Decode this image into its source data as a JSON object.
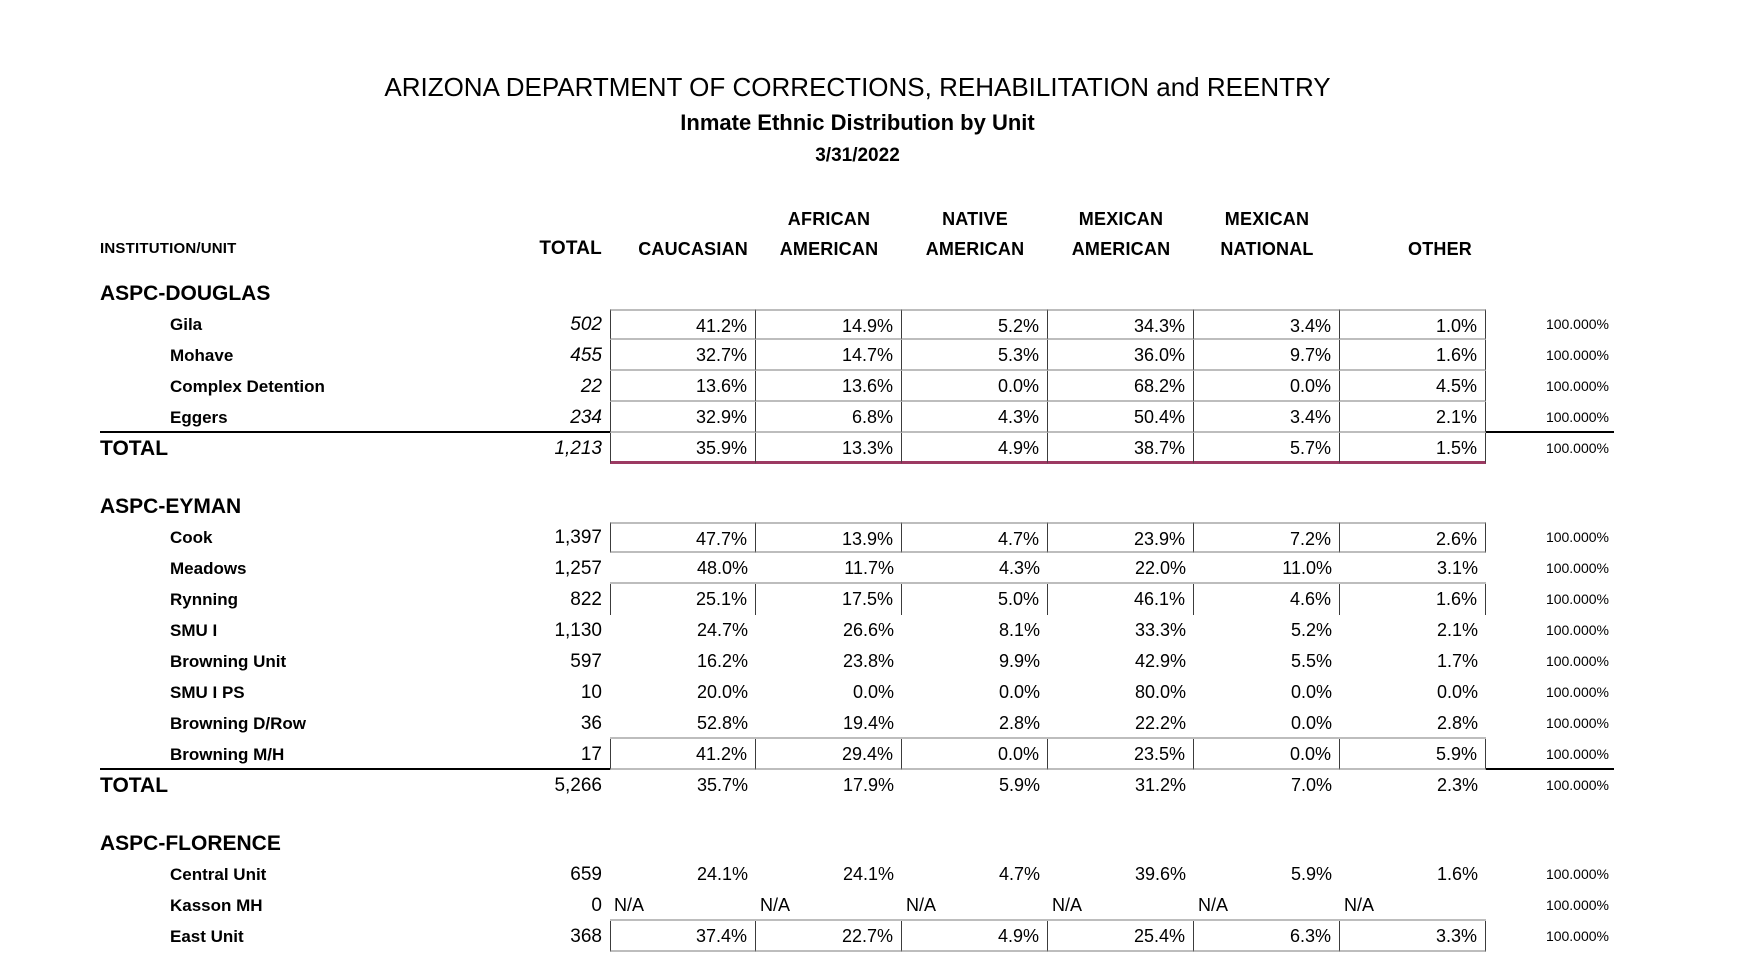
{
  "page": {
    "title": "ARIZONA DEPARTMENT OF CORRECTIONS, REHABILITATION and REENTRY",
    "subtitle": "Inmate Ethnic Distribution by Unit",
    "date": "3/31/2022"
  },
  "colors": {
    "maroon_total_line": "#9c3a62",
    "gray_cell_line": "#bdbdbd",
    "dark_cell_line": "#3c3c3c",
    "black_rule": "#000000"
  },
  "table": {
    "columns": {
      "unit": "INSTITUTION/UNIT",
      "total": "TOTAL",
      "group_top": [
        "",
        "AFRICAN",
        "NATIVE",
        "MEXICAN",
        "MEXICAN",
        ""
      ],
      "group_bottom": [
        "CAUCASIAN",
        "AMERICAN",
        "AMERICAN",
        "AMERICAN",
        "NATIONAL",
        "OTHER"
      ],
      "hundred_header": ""
    },
    "total_row_label": "TOTAL",
    "sections": [
      {
        "name": "ASPC-DOUGLAS",
        "rows": [
          {
            "unit": "Gila",
            "total": "502",
            "italic": true,
            "pcts": [
              "41.2%",
              "14.9%",
              "5.2%",
              "34.3%",
              "3.4%",
              "1.0%"
            ],
            "hund": "100.000%",
            "flags": [
              "gt",
              "v",
              "gb"
            ]
          },
          {
            "unit": "Mohave",
            "total": "455",
            "italic": true,
            "pcts": [
              "32.7%",
              "14.7%",
              "5.3%",
              "36.0%",
              "9.7%",
              "1.6%"
            ],
            "hund": "100.000%",
            "flags": [
              "v",
              "gb"
            ]
          },
          {
            "unit": "Complex Detention",
            "total": "22",
            "italic": true,
            "pcts": [
              "13.6%",
              "13.6%",
              "0.0%",
              "68.2%",
              "0.0%",
              "4.5%"
            ],
            "hund": "100.000%",
            "flags": [
              "v",
              "gb"
            ]
          },
          {
            "unit": "Eggers",
            "total": "234",
            "italic": true,
            "pcts": [
              "32.9%",
              "6.8%",
              "4.3%",
              "50.4%",
              "3.4%",
              "2.1%"
            ],
            "hund": "100.000%",
            "flags": [
              "v",
              "gb",
              "blb",
              "b100b"
            ]
          }
        ],
        "total_row": {
          "total": "1,213",
          "italic": true,
          "pcts": [
            "35.9%",
            "13.3%",
            "4.9%",
            "38.7%",
            "5.7%",
            "1.5%"
          ],
          "hund": "100.000%",
          "flags": [
            "v",
            "mb"
          ]
        }
      },
      {
        "name": "ASPC-EYMAN",
        "rows": [
          {
            "unit": "Cook",
            "total": "1,397",
            "italic": false,
            "pcts": [
              "47.7%",
              "13.9%",
              "4.7%",
              "23.9%",
              "7.2%",
              "2.6%"
            ],
            "hund": "100.000%",
            "flags": [
              "gt",
              "v",
              "gb"
            ]
          },
          {
            "unit": "Meadows",
            "total": "1,257",
            "italic": false,
            "pcts": [
              "48.0%",
              "11.7%",
              "4.3%",
              "22.0%",
              "11.0%",
              "3.1%"
            ],
            "hund": "100.000%",
            "flags": [
              "gb"
            ]
          },
          {
            "unit": "Rynning",
            "total": "822",
            "italic": false,
            "pcts": [
              "25.1%",
              "17.5%",
              "5.0%",
              "46.1%",
              "4.6%",
              "1.6%"
            ],
            "hund": "100.000%",
            "flags": [
              "v"
            ]
          },
          {
            "unit": "SMU I",
            "total": "1,130",
            "italic": false,
            "pcts": [
              "24.7%",
              "26.6%",
              "8.1%",
              "33.3%",
              "5.2%",
              "2.1%"
            ],
            "hund": "100.000%",
            "flags": []
          },
          {
            "unit": "Browning Unit",
            "total": "597",
            "italic": false,
            "pcts": [
              "16.2%",
              "23.8%",
              "9.9%",
              "42.9%",
              "5.5%",
              "1.7%"
            ],
            "hund": "100.000%",
            "flags": []
          },
          {
            "unit": "SMU I PS",
            "total": "10",
            "italic": false,
            "pcts": [
              "20.0%",
              "0.0%",
              "0.0%",
              "80.0%",
              "0.0%",
              "0.0%"
            ],
            "hund": "100.000%",
            "flags": []
          },
          {
            "unit": "Browning D/Row",
            "total": "36",
            "italic": false,
            "pcts": [
              "52.8%",
              "19.4%",
              "2.8%",
              "22.2%",
              "0.0%",
              "2.8%"
            ],
            "hund": "100.000%",
            "flags": [
              "gb"
            ]
          },
          {
            "unit": "Browning M/H",
            "total": "17",
            "italic": false,
            "pcts": [
              "41.2%",
              "29.4%",
              "0.0%",
              "23.5%",
              "0.0%",
              "5.9%"
            ],
            "hund": "100.000%",
            "flags": [
              "v",
              "gb",
              "blb",
              "b100b"
            ]
          }
        ],
        "total_row": {
          "total": "5,266",
          "italic": false,
          "pcts": [
            "35.7%",
            "17.9%",
            "5.9%",
            "31.2%",
            "7.0%",
            "2.3%"
          ],
          "hund": "100.000%",
          "flags": []
        }
      },
      {
        "name": "ASPC-FLORENCE",
        "rows": [
          {
            "unit": "Central Unit",
            "total": "659",
            "italic": false,
            "pcts": [
              "24.1%",
              "24.1%",
              "4.7%",
              "39.6%",
              "5.9%",
              "1.6%"
            ],
            "hund": "100.000%",
            "flags": []
          },
          {
            "unit": "Kasson MH",
            "total": "0",
            "italic": false,
            "pcts": [
              "N/A",
              "N/A",
              "N/A",
              "N/A",
              "N/A",
              "N/A"
            ],
            "na": true,
            "hund": "100.000%",
            "flags": [
              "gb"
            ]
          },
          {
            "unit": "East Unit",
            "total": "368",
            "italic": false,
            "pcts": [
              "37.4%",
              "22.7%",
              "4.9%",
              "25.4%",
              "6.3%",
              "3.3%"
            ],
            "hund": "100.000%",
            "flags": [
              "v",
              "gb"
            ]
          }
        ]
      }
    ]
  }
}
